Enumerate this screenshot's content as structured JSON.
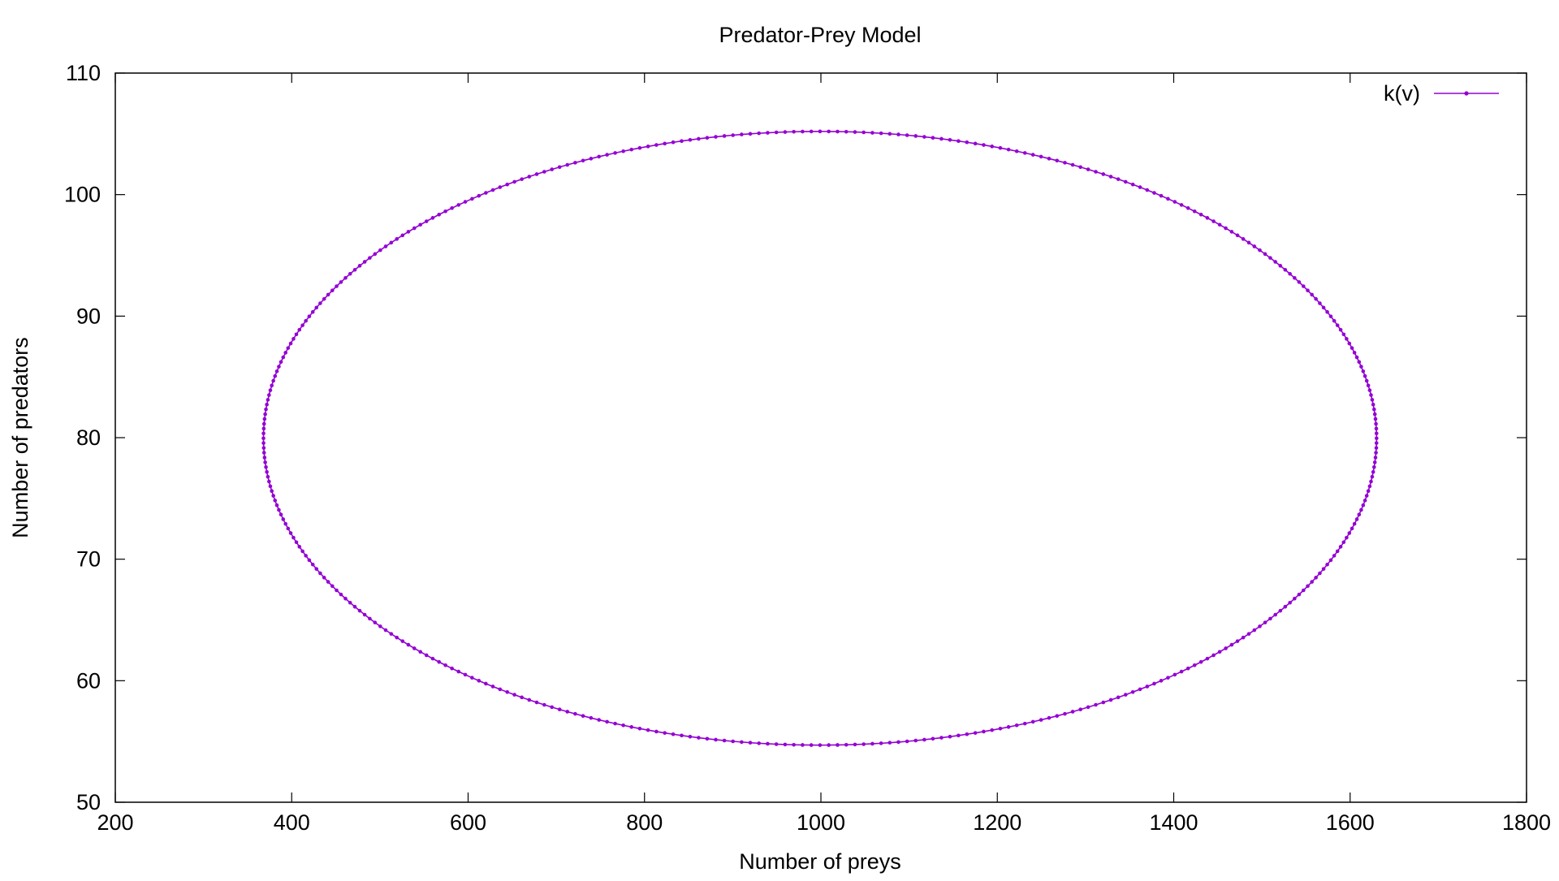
{
  "chart_data": {
    "type": "line",
    "title": "Predator-Prey Model",
    "xlabel": "Number of preys",
    "ylabel": "Number of predators",
    "xlim": [
      200,
      1800
    ],
    "ylim": [
      50,
      110
    ],
    "xticks": [
      "200",
      "400",
      "600",
      "800",
      "1000",
      "1200",
      "1400",
      "1600",
      "1800"
    ],
    "yticks": [
      "50",
      "60",
      "70",
      "80",
      "90",
      "100",
      "110"
    ],
    "grid": false,
    "legend": "top-right",
    "series": [
      {
        "name": "k(v)",
        "color": "#9400d3",
        "marker": "small-dot",
        "curve": "closed-orbit",
        "x_range": [
          368,
          1630
        ],
        "y_range": [
          54.7,
          105.2
        ],
        "points": [
          [
            1630,
            80
          ],
          [
            1622,
            86
          ],
          [
            1596,
            91.6
          ],
          [
            1553,
            96.4
          ],
          [
            1491,
            100.3
          ],
          [
            1414,
            103.1
          ],
          [
            1323,
            104.8
          ],
          [
            1215,
            105.2
          ],
          [
            1100,
            105.2
          ],
          [
            1000,
            105.2
          ],
          [
            900,
            105
          ],
          [
            800,
            104.2
          ],
          [
            700,
            102.7
          ],
          [
            600,
            100
          ],
          [
            520,
            96.6
          ],
          [
            455,
            92.6
          ],
          [
            406,
            88
          ],
          [
            378,
            83.4
          ],
          [
            368,
            80
          ],
          [
            378,
            76.6
          ],
          [
            406,
            72
          ],
          [
            455,
            67.4
          ],
          [
            520,
            63.4
          ],
          [
            600,
            60
          ],
          [
            700,
            57.3
          ],
          [
            800,
            55.8
          ],
          [
            900,
            55
          ],
          [
            1000,
            54.8
          ],
          [
            1100,
            54.8
          ],
          [
            1215,
            54.8
          ],
          [
            1323,
            55.2
          ],
          [
            1414,
            56.9
          ],
          [
            1491,
            59.7
          ],
          [
            1553,
            63.6
          ],
          [
            1596,
            68.4
          ],
          [
            1622,
            74
          ],
          [
            1630,
            80
          ]
        ]
      }
    ]
  }
}
